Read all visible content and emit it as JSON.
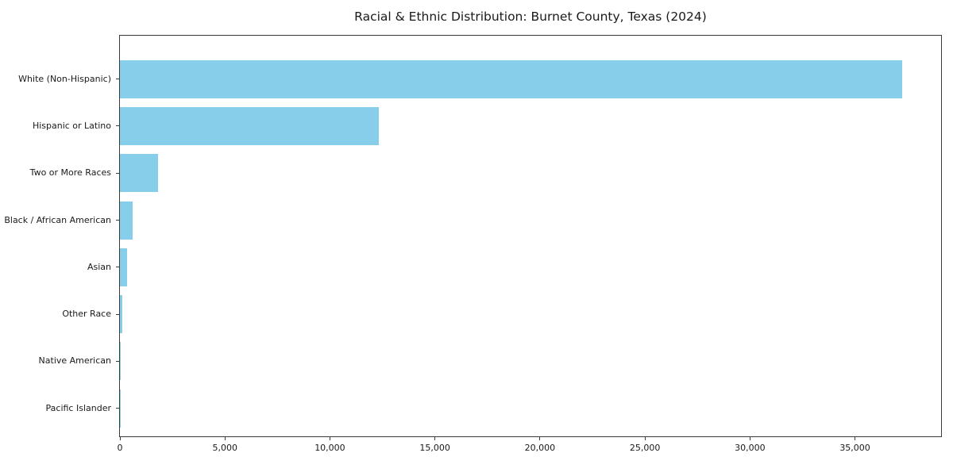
{
  "chart_data": {
    "type": "bar",
    "orientation": "horizontal",
    "title": "Racial & Ethnic Distribution: Burnet County, Texas (2024)",
    "categories": [
      "White (Non-Hispanic)",
      "Hispanic or Latino",
      "Two or More Races",
      "Black / African American",
      "Asian",
      "Other Race",
      "Native American",
      "Pacific Islander"
    ],
    "values": [
      37250,
      12310,
      1820,
      600,
      330,
      130,
      40,
      15
    ],
    "bar_color": "#87CEEB",
    "xlabel": "",
    "ylabel": "",
    "xlim": [
      0,
      39100
    ],
    "x_ticks": [
      0,
      5000,
      10000,
      15000,
      20000,
      25000,
      30000,
      35000
    ],
    "x_tick_labels": [
      "0",
      "5,000",
      "10,000",
      "15,000",
      "20,000",
      "25,000",
      "30,000",
      "35,000"
    ],
    "grid": false,
    "legend": null,
    "text_color": "#1a1a1a",
    "axis_color": "#3a3a3a"
  }
}
